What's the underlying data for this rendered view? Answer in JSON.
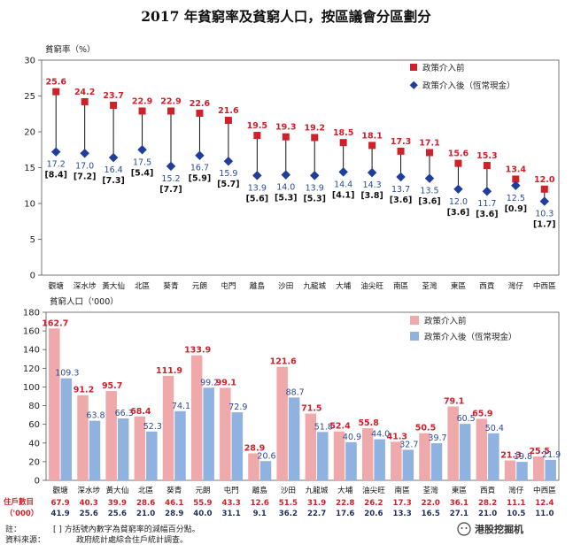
{
  "title": "2017 年貧窮率及貧窮人口，按區議會分區劃分",
  "note_label": "註：",
  "note_text": "[ ]    方括號內數字為貧窮率的減幅百分點。",
  "source_label": "資料來源：",
  "source_text": "政府統計處綜合住戶統計調查。",
  "watermark": "港股挖掘机",
  "households_label_1": "住戶數目",
  "households_label_2": "（'000）",
  "colors": {
    "red": "#d0202a",
    "blue": "#1f3d9a",
    "pink": "#efa9ab",
    "lightblue": "#8fb2e0"
  },
  "chart_data": [
    {
      "type": "dot-line",
      "ylabel": "貧窮率（%）",
      "ylim": [
        0,
        30
      ],
      "yticks": [
        0,
        5,
        10,
        15,
        20,
        25,
        30
      ],
      "legend": "right",
      "categories": [
        "觀塘",
        "深水埗",
        "黃大仙",
        "北區",
        "葵青",
        "元朗",
        "屯門",
        "離島",
        "沙田",
        "九龍城",
        "大埔",
        "油尖旺",
        "南區",
        "荃灣",
        "東區",
        "西貢",
        "灣仔",
        "中西區"
      ],
      "series": [
        {
          "name": "政策介入前",
          "values": [
            25.6,
            24.2,
            23.7,
            22.9,
            22.9,
            22.6,
            21.6,
            19.5,
            19.3,
            19.2,
            18.5,
            18.1,
            17.3,
            17.1,
            15.6,
            15.3,
            13.4,
            12.0
          ]
        },
        {
          "name": "政策介入後（恆常現金）",
          "values": [
            17.2,
            17.0,
            16.4,
            17.5,
            15.2,
            16.7,
            15.9,
            13.9,
            14.0,
            13.9,
            14.4,
            14.3,
            13.7,
            13.5,
            12.0,
            11.7,
            12.5,
            10.3
          ]
        }
      ],
      "reductions": [
        "[8.4]",
        "[7.2]",
        "[7.3]",
        "[5.4]",
        "[7.7]",
        "[5.9]",
        "[5.7]",
        "[5.6]",
        "[5.3]",
        "[5.3]",
        "[4.1]",
        "[3.8]",
        "[3.6]",
        "[3.6]",
        "[3.6]",
        "[3.6]",
        "[0.9]",
        "[1.7]"
      ]
    },
    {
      "type": "bar",
      "ylabel": "貧窮人口（'000）",
      "ylim": [
        0,
        180
      ],
      "yticks": [
        0,
        20,
        40,
        60,
        80,
        100,
        120,
        140,
        160,
        180
      ],
      "legend": "right",
      "categories": [
        "觀塘",
        "深水埗",
        "黃大仙",
        "北區",
        "葵青",
        "元朗",
        "屯門",
        "離島",
        "沙田",
        "九龍城",
        "大埔",
        "油尖旺",
        "南區",
        "荃灣",
        "東區",
        "西貢",
        "灣仔",
        "中西區"
      ],
      "series": [
        {
          "name": "政策介入前",
          "values": [
            162.7,
            91.2,
            95.7,
            68.4,
            111.9,
            133.9,
            99.1,
            28.9,
            121.6,
            71.5,
            52.4,
            55.8,
            41.3,
            50.5,
            79.1,
            65.9,
            21.3,
            25.5
          ]
        },
        {
          "name": "政策介入後（恆常現金）",
          "values": [
            109.3,
            63.8,
            66.3,
            52.3,
            74.1,
            99.2,
            72.9,
            20.6,
            88.7,
            51.8,
            40.9,
            44.0,
            32.7,
            39.7,
            60.5,
            50.4,
            19.8,
            21.9
          ]
        }
      ],
      "households_before": [
        "67.9",
        "40.3",
        "39.9",
        "28.6",
        "46.1",
        "55.9",
        "43.3",
        "12.6",
        "51.5",
        "31.9",
        "22.8",
        "26.2",
        "17.3",
        "22.0",
        "36.1",
        "28.2",
        "11.1",
        "12.4"
      ],
      "households_after": [
        "41.9",
        "25.6",
        "25.6",
        "21.0",
        "28.9",
        "40.0",
        "31.1",
        "9.1",
        "36.2",
        "22.7",
        "17.6",
        "20.6",
        "13.3",
        "16.5",
        "27.1",
        "21.0",
        "10.5",
        "11.0"
      ]
    }
  ]
}
